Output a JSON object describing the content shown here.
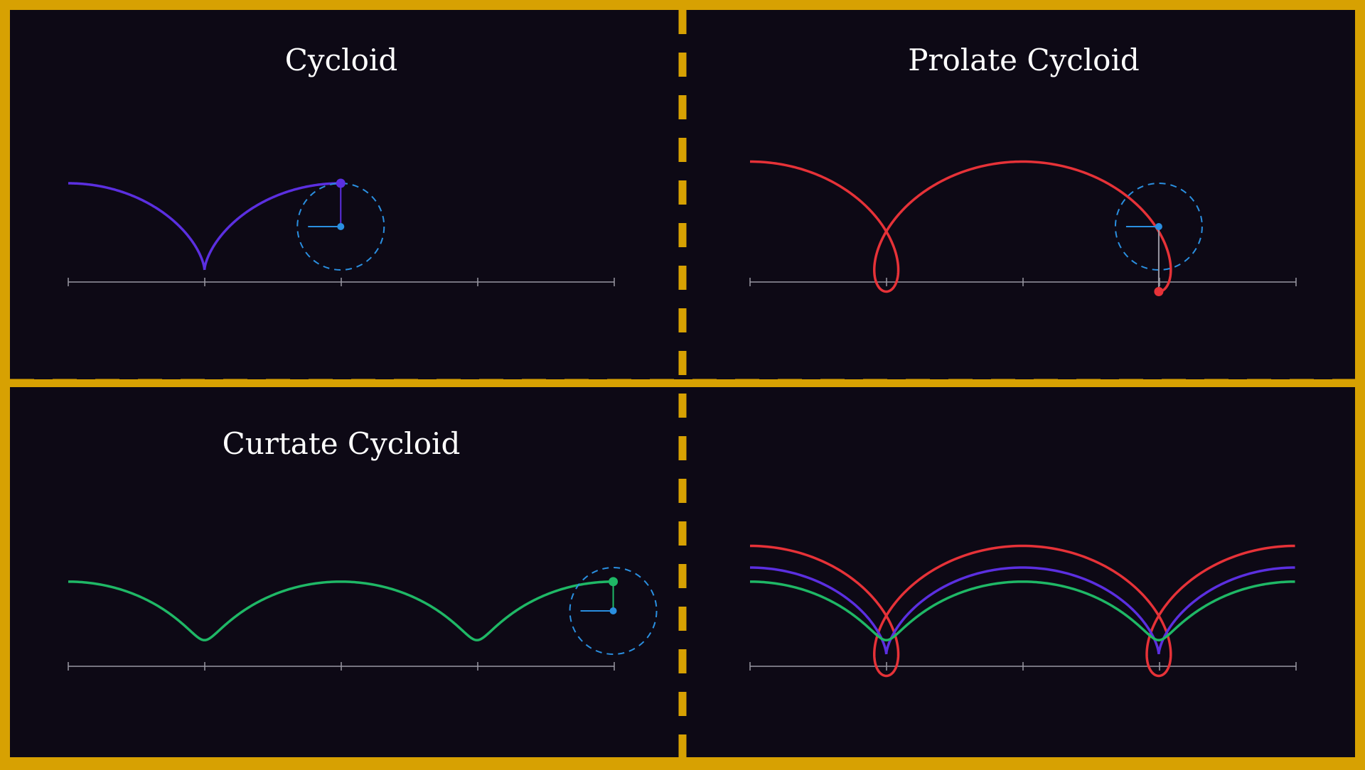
{
  "panels": {
    "top_left": {
      "title": "Cycloid"
    },
    "top_right": {
      "title": "Prolate Cycloid"
    },
    "bottom_left": {
      "title": "Curtate Cycloid"
    },
    "bottom_right": {
      "title": ""
    }
  },
  "colors": {
    "frame": "#d7a102",
    "background": "#0d0915",
    "cycloid": "#5b2fe0",
    "prolate": "#e63238",
    "curtate": "#1fb866",
    "rolling_circle": "#2a8fe0",
    "axis": "#9a98a3"
  },
  "curve_params": {
    "cycloid_ratio": 1.0,
    "prolate_ratio": 1.5,
    "curtate_ratio": 0.5,
    "axis_ticks": 5
  }
}
